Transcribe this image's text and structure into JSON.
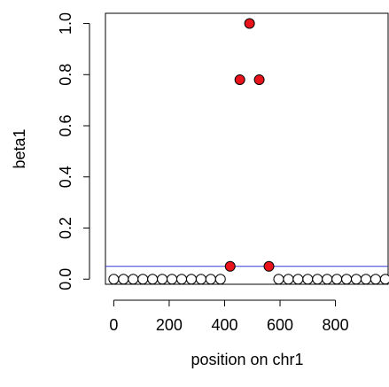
{
  "chart_data": {
    "type": "scatter",
    "title": "",
    "xlabel": "position on chr1",
    "ylabel": "beta1",
    "xlim": [
      -30,
      990
    ],
    "ylim": [
      -0.02,
      1.04
    ],
    "x_ticks": [
      0,
      200,
      400,
      600,
      800
    ],
    "x_tick_labels": [
      "0",
      "200",
      "400",
      "600",
      "800"
    ],
    "y_ticks": [
      0.0,
      0.2,
      0.4,
      0.6,
      0.8,
      1.0
    ],
    "y_tick_labels": [
      "0.0",
      "0.2",
      "0.4",
      "0.6",
      "0.8",
      "1.0"
    ],
    "threshold_line": {
      "y": 0.05,
      "color": "#3a3ad6"
    },
    "colors": {
      "highlight": "#e8131b",
      "open": "#ffffff",
      "outline": "#000000"
    },
    "series": [
      {
        "marker": "open-circle",
        "x": [
          0,
          35,
          70,
          105,
          140,
          175,
          210,
          245,
          280,
          315,
          350,
          385,
          595,
          630,
          665,
          700,
          735,
          770,
          805,
          840,
          875,
          910,
          945,
          980
        ],
        "y": [
          0,
          0,
          0,
          0,
          0,
          0,
          0,
          0,
          0,
          0,
          0,
          0,
          0,
          0,
          0,
          0,
          0,
          0,
          0,
          0,
          0,
          0,
          0,
          0
        ]
      },
      {
        "marker": "filled-circle",
        "x": [
          420,
          455,
          490,
          525,
          560
        ],
        "y": [
          0.05,
          0.78,
          1.0,
          0.78,
          0.05
        ]
      }
    ]
  }
}
